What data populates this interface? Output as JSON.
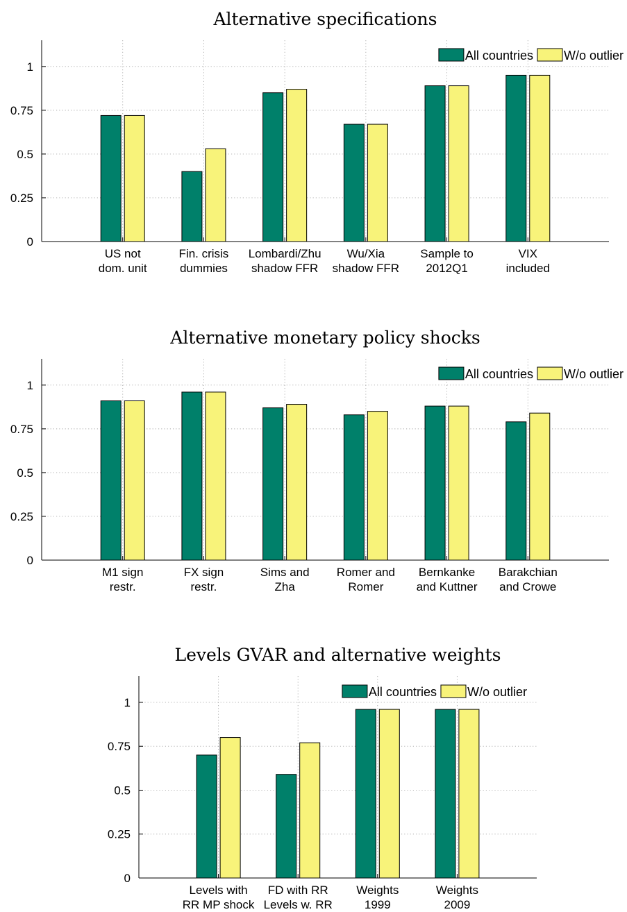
{
  "colors": {
    "all": "#00806a",
    "wo": "#f8f37a",
    "stroke": "#000000"
  },
  "chart_data": [
    {
      "type": "bar",
      "title": "Alternative specifications",
      "categories": [
        [
          "US not",
          "dom. unit"
        ],
        [
          "Fin. crisis",
          "dummies"
        ],
        [
          "Lombardi/Zhu",
          "shadow FFR"
        ],
        [
          "Wu/Xia",
          "shadow FFR"
        ],
        [
          "Sample to",
          "2012Q1"
        ],
        [
          "VIX",
          "included"
        ]
      ],
      "series": [
        {
          "name": "All countries",
          "values": [
            0.72,
            0.4,
            0.85,
            0.67,
            0.89,
            0.95
          ]
        },
        {
          "name": "W/o outlier",
          "values": [
            0.72,
            0.53,
            0.87,
            0.67,
            0.89,
            0.95
          ]
        }
      ],
      "ylim": [
        0,
        1.15
      ],
      "yticks": [
        "0",
        "0.25",
        "0.5",
        "0.75",
        "1"
      ],
      "grid": true,
      "legend": "top-right"
    },
    {
      "type": "bar",
      "title": "Alternative monetary policy shocks",
      "categories": [
        [
          "M1 sign",
          "restr."
        ],
        [
          "FX sign",
          "restr."
        ],
        [
          "Sims and",
          "Zha"
        ],
        [
          "Romer and",
          "Romer"
        ],
        [
          "Bernkanke",
          "and Kuttner"
        ],
        [
          "Barakchian",
          "and Crowe"
        ]
      ],
      "series": [
        {
          "name": "All countries",
          "values": [
            0.91,
            0.96,
            0.87,
            0.83,
            0.88,
            0.79
          ]
        },
        {
          "name": "W/o outlier",
          "values": [
            0.91,
            0.96,
            0.89,
            0.85,
            0.88,
            0.84
          ]
        }
      ],
      "ylim": [
        0,
        1.15
      ],
      "yticks": [
        "0",
        "0.25",
        "0.5",
        "0.75",
        "1"
      ],
      "grid": true,
      "legend": "top-right"
    },
    {
      "type": "bar",
      "title": "Levels GVAR and alternative weights",
      "categories": [
        [
          "Levels with",
          "RR MP shock"
        ],
        [
          "FD with RR",
          "Levels w. RR"
        ],
        [
          "Weights",
          "1999"
        ],
        [
          "Weights",
          "2009"
        ]
      ],
      "series": [
        {
          "name": "All countries",
          "values": [
            0.7,
            0.59,
            0.96,
            0.96
          ]
        },
        {
          "name": "W/o outlier",
          "values": [
            0.8,
            0.77,
            0.96,
            0.96
          ]
        }
      ],
      "ylim": [
        0,
        1.15
      ],
      "yticks": [
        "0",
        "0.25",
        "0.5",
        "0.75",
        "1"
      ],
      "grid": true,
      "legend": "top-right"
    }
  ]
}
